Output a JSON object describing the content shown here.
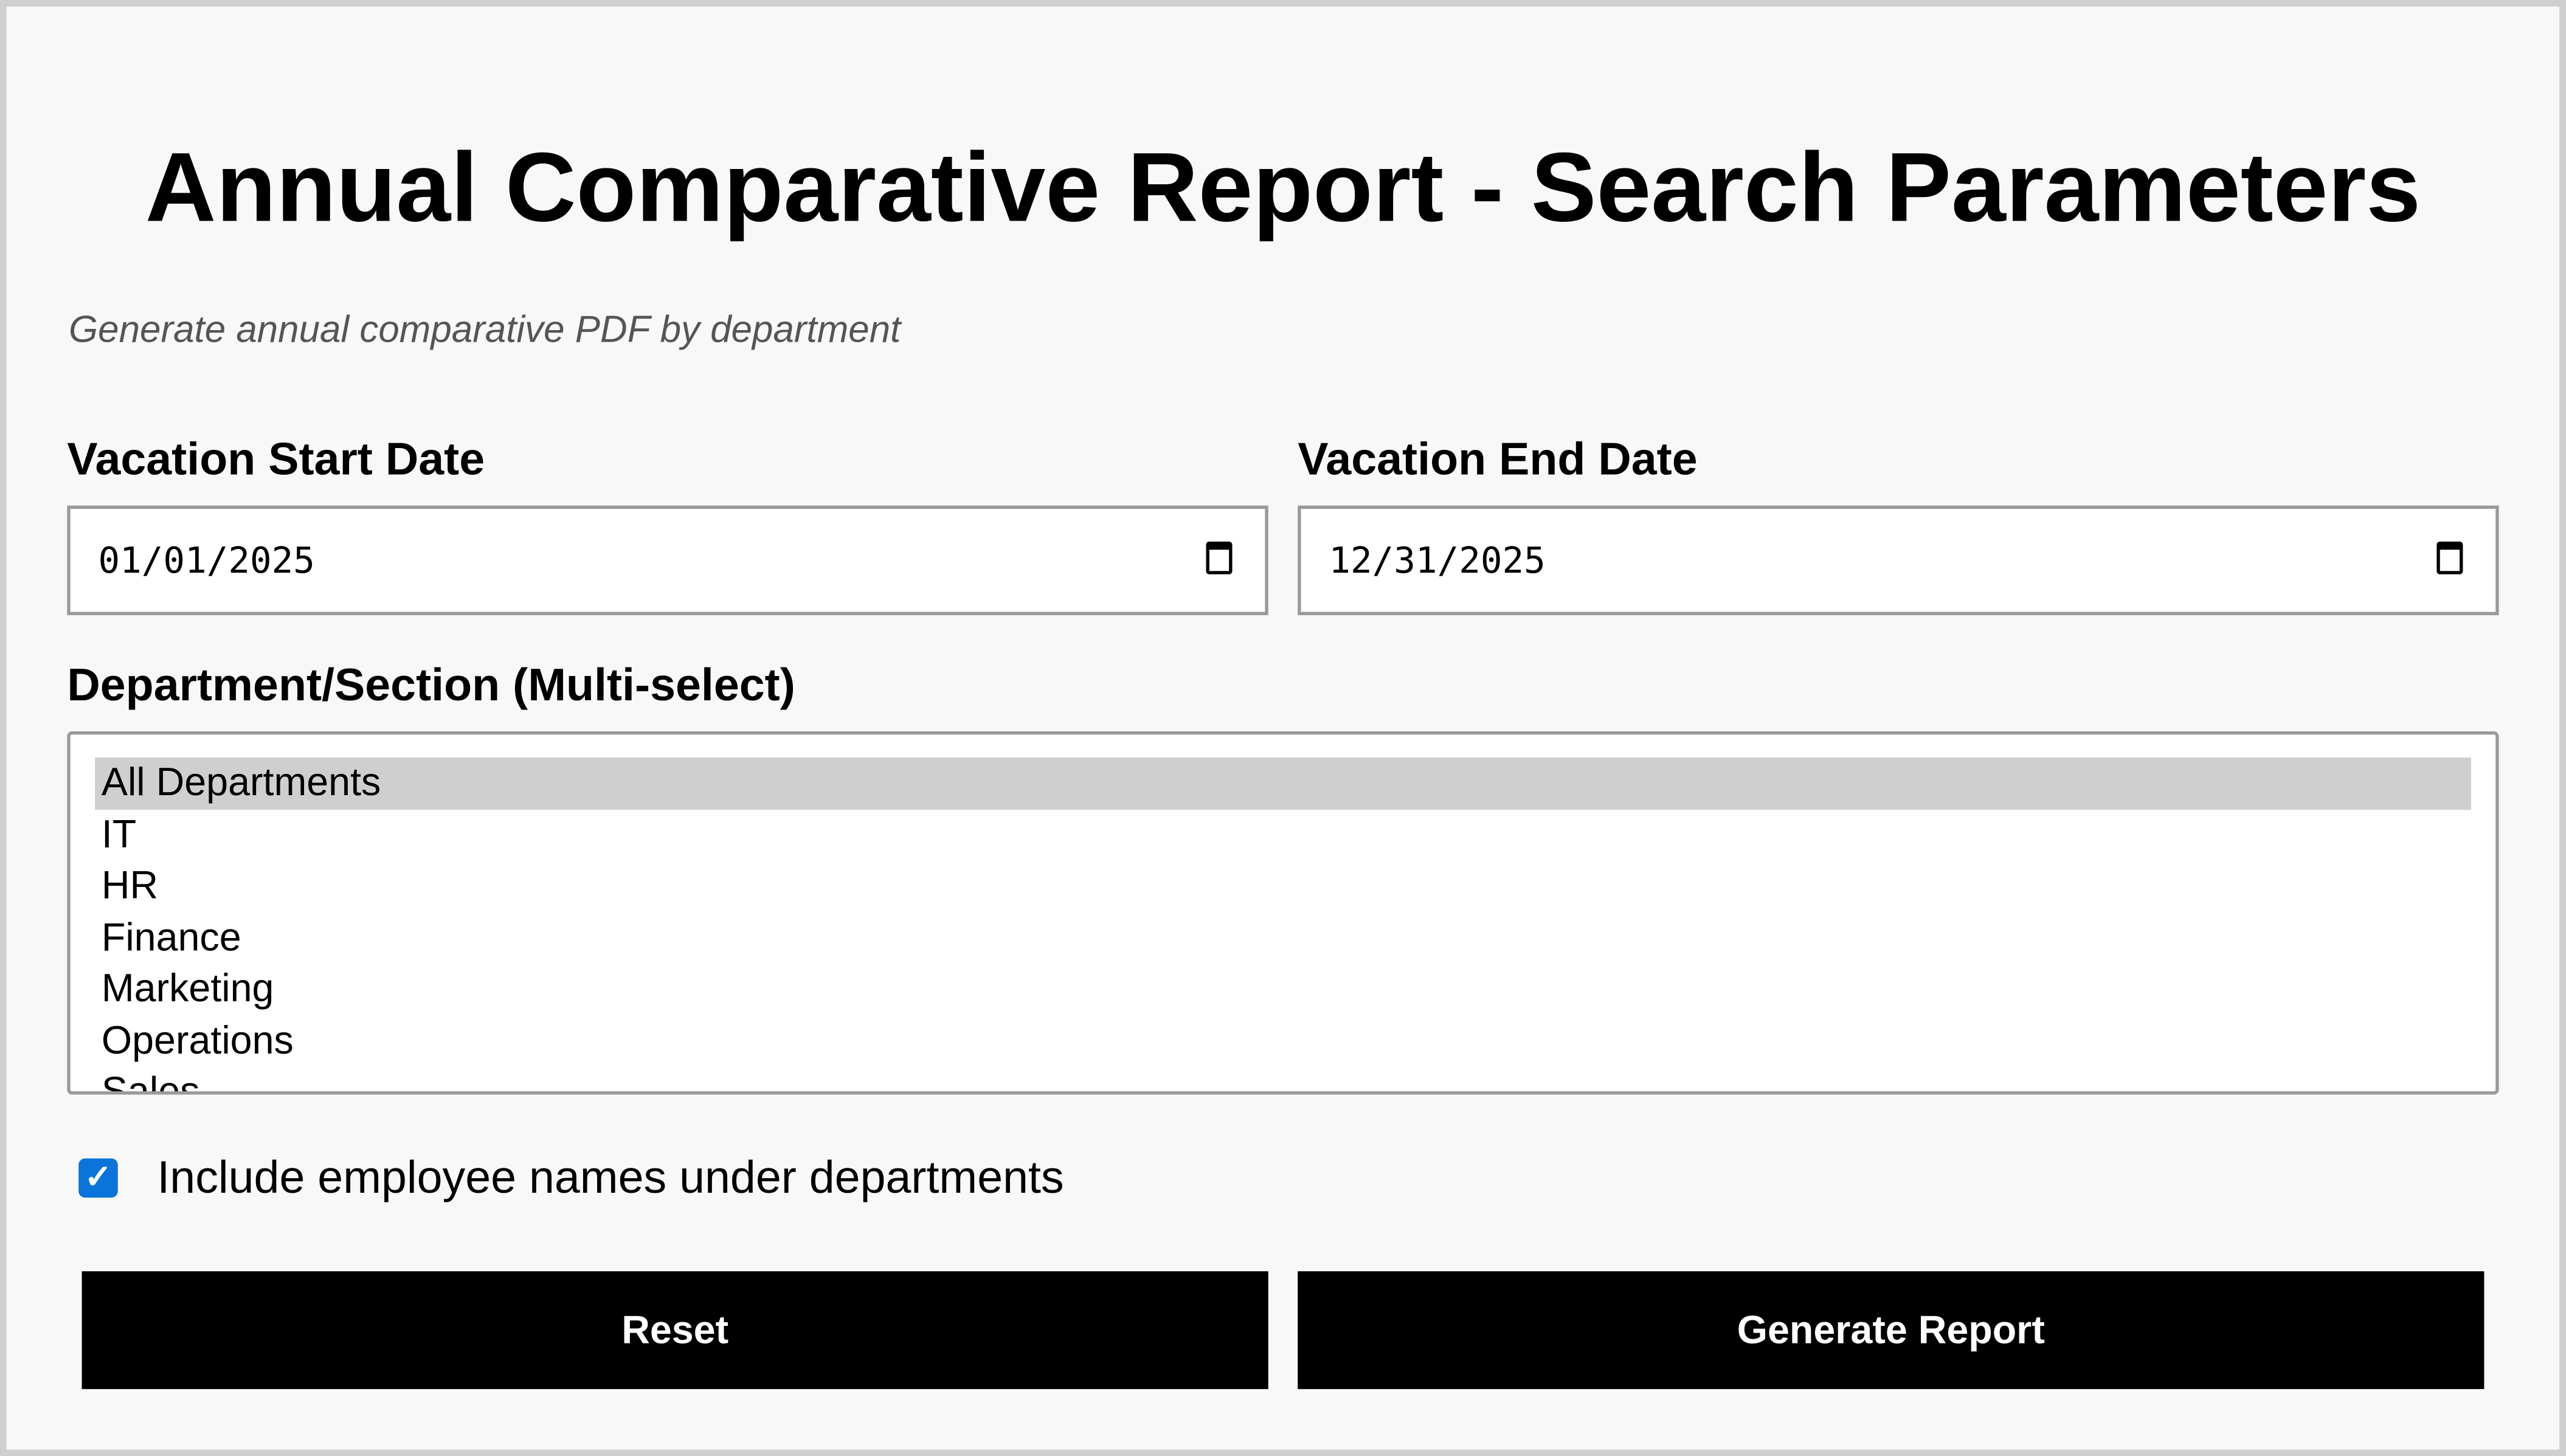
{
  "header": {
    "title": "Annual Comparative Report - Search Parameters",
    "subtitle": "Generate annual comparative PDF by department"
  },
  "form": {
    "start_date": {
      "label": "Vacation Start Date",
      "value": "01/01/2025",
      "icon": "calendar-icon"
    },
    "end_date": {
      "label": "Vacation End Date",
      "value": "12/31/2025",
      "icon": "calendar-icon"
    },
    "departments": {
      "label": "Department/Section (Multi-select)",
      "options": [
        "All Departments",
        "IT",
        "HR",
        "Finance",
        "Marketing",
        "Operations",
        "Sales"
      ],
      "selected": "All Departments"
    },
    "include_names": {
      "label": "Include employee names under departments",
      "checked": true
    },
    "reset_label": "Reset",
    "generate_label": "Generate Report"
  },
  "colors": {
    "accent": "#0a74da",
    "button": "#000000",
    "background": "#f8f8f8"
  }
}
